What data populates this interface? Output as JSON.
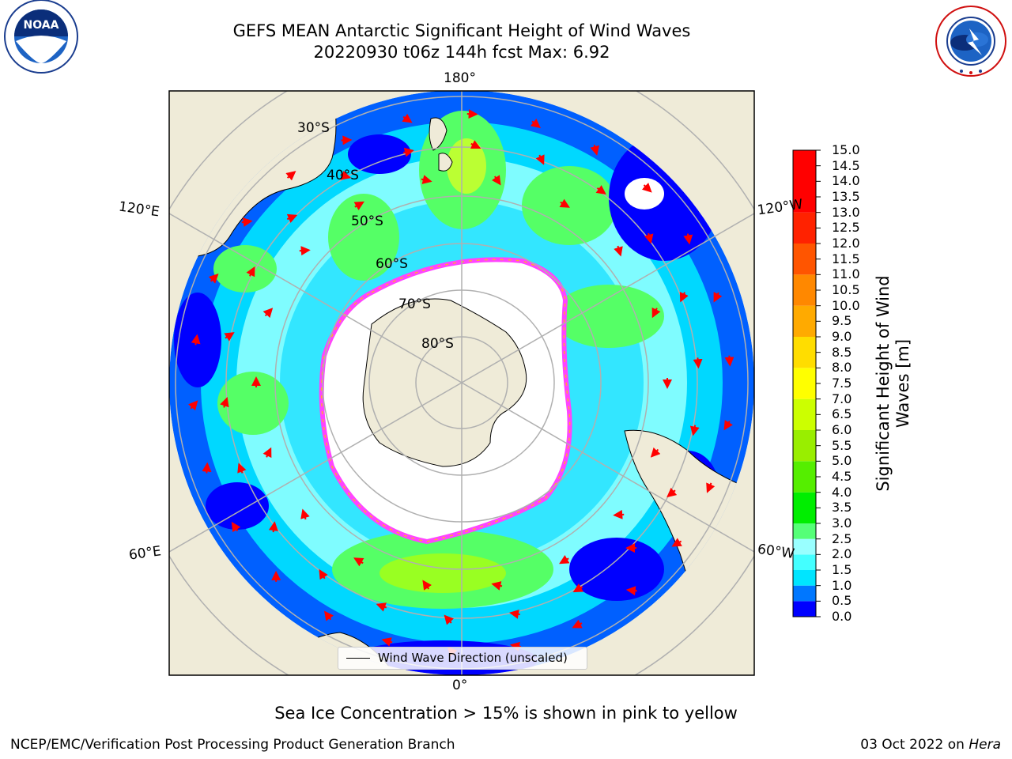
{
  "title": {
    "line1": "GEFS MEAN Antarctic Significant Height of Wind Waves",
    "line2": "20220930 t06z 144h fcst   Max: 6.92"
  },
  "logos": {
    "noaa": "NOAA",
    "noaa_ring": "NATIONAL OCEANIC AND ATMOSPHERIC ADMINISTRATION · U.S. DEPARTMENT OF COMMERCE",
    "nws_ring": "NATIONAL WEATHER SERVICE"
  },
  "map": {
    "projection": "south-polar-stereographic",
    "background_land": "#efebd8",
    "lon_labels": {
      "top": "180°",
      "bottom": "0°",
      "upper_left": "120°E",
      "upper_right": "120°W",
      "lower_left": "60°E",
      "lower_right": "60°W"
    },
    "lat_labels": [
      "30°S",
      "40°S",
      "50°S",
      "60°S",
      "70°S",
      "80°S"
    ],
    "legend_label": "Wind Wave Direction (unscaled)",
    "arrow_color": "#ff0000",
    "sea_ice_color_range": [
      "#ff44ff",
      "#ffa500",
      "#ffff00"
    ]
  },
  "colorbar": {
    "label": "Significant Height of Wind Waves [m]",
    "ticks": [
      "0.0",
      "0.5",
      "1.0",
      "1.5",
      "2.0",
      "2.5",
      "3.0",
      "3.5",
      "4.0",
      "4.5",
      "5.0",
      "5.5",
      "6.0",
      "6.5",
      "7.0",
      "7.5",
      "8.0",
      "8.5",
      "9.0",
      "9.5",
      "10.0",
      "10.5",
      "11.0",
      "11.5",
      "12.0",
      "12.5",
      "13.0",
      "13.5",
      "14.0",
      "14.5",
      "15.0"
    ],
    "colors": [
      "#0000ff",
      "#0077ff",
      "#00e5ff",
      "#44ffff",
      "#99ffff",
      "#55ff77",
      "#00ee00",
      "#55ee00",
      "#99ee00",
      "#ccff00",
      "#ffff00",
      "#ffdd00",
      "#ffaa00",
      "#ff8800",
      "#ff5500",
      "#ff2200",
      "#ff0000"
    ]
  },
  "footer": {
    "note": "Sea Ice Concentration > 15% is shown in pink to yellow",
    "left": "NCEP/EMC/Verification Post Processing Product Generation Branch",
    "date": "03 Oct 2022 on",
    "host": "Hera"
  }
}
